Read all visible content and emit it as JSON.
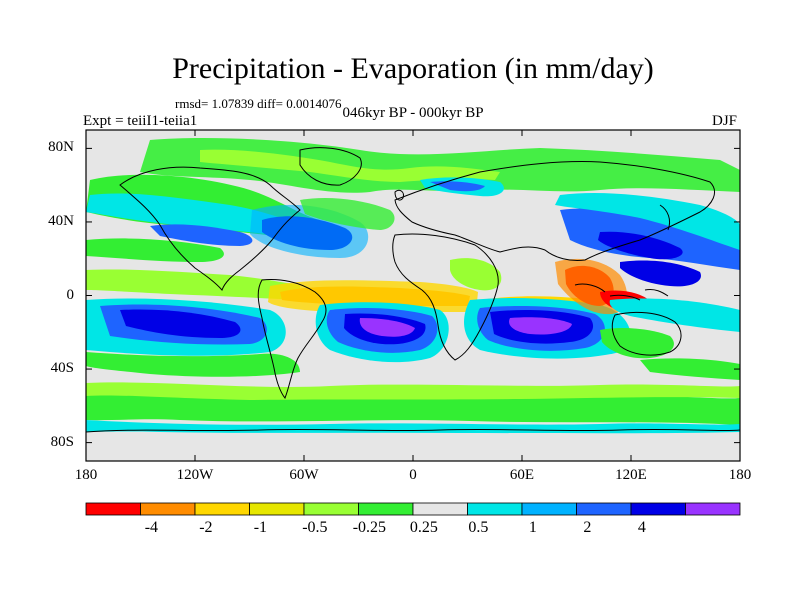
{
  "title": "Precipitation - Evaporation (in mm/day)",
  "stats": "rmsd= 1.07839 diff= 0.0014076",
  "experiment": "Expt = teiiI1-teiia1",
  "period": "046kyr BP - 000kyr BP",
  "season": "DJF",
  "lat_ticks": [
    {
      "label": "80N",
      "lat": 80
    },
    {
      "label": "40N",
      "lat": 40
    },
    {
      "label": "0",
      "lat": 0
    },
    {
      "label": "40S",
      "lat": -40
    },
    {
      "label": "80S",
      "lat": -80
    }
  ],
  "lon_ticks": [
    {
      "label": "180",
      "lon": -180
    },
    {
      "label": "120W",
      "lon": -120
    },
    {
      "label": "60W",
      "lon": -60
    },
    {
      "label": "0",
      "lon": 0
    },
    {
      "label": "60E",
      "lon": 60
    },
    {
      "label": "120E",
      "lon": 120
    },
    {
      "label": "180",
      "lon": 180
    }
  ],
  "colorbar": {
    "colors": [
      "#ff0000",
      "#ff8c00",
      "#ffd700",
      "#e6e600",
      "#99ff33",
      "#33ee33",
      "#e6e6e6",
      "#00e6e6",
      "#00b2ff",
      "#1e64ff",
      "#0000e6",
      "#9933ff"
    ],
    "labels": [
      "-4",
      "-2",
      "-1",
      "-0.5",
      "-0.25",
      "0.25",
      "0.5",
      "1",
      "2",
      "4"
    ]
  },
  "colors": {
    "land_ocean_background": "#e6e6e6",
    "coastline": "#000000"
  }
}
